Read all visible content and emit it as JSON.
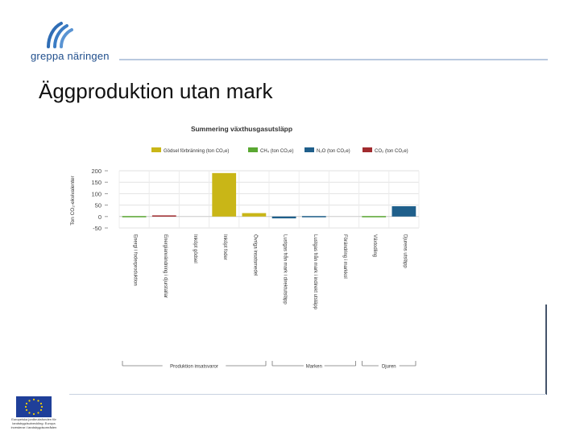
{
  "header": {
    "logo_text": "greppa näringen",
    "title": "Äggproduktion utan mark"
  },
  "footer": {
    "eu_text": "Europeiska jordbruksfonden för landsbygdsutveckling: Europa investerar i landsbygdsområden"
  },
  "colors": {
    "fertilizer": "#c9b617",
    "ch4": "#5aa832",
    "n2o": "#1f5f8b",
    "co2": "#a12b2e"
  },
  "chart_data": {
    "type": "bar",
    "title": "Summering växthusgasutsläpp",
    "ylabel": "Ton CO₂-ekvivalenter",
    "ylim": [
      -50,
      200
    ],
    "yticks": [
      200,
      150,
      100,
      50,
      0,
      -50
    ],
    "legend_position": "top",
    "grid": true,
    "series": [
      {
        "name": "Gödsel förbränning (ton CO₂e)",
        "color_key": "fertilizer"
      },
      {
        "name": "CH₄ (ton CO₂e)",
        "color_key": "ch4"
      },
      {
        "name": "N₂O (ton CO₂e)",
        "color_key": "n2o"
      },
      {
        "name": "CO₂ (ton CO₂e)",
        "color_key": "co2"
      }
    ],
    "categories": [
      "Energi i foderproduktion",
      "Energianvändning i djurstallar",
      "Inköpt gödsel",
      "Inköpt foder",
      "Övriga insatsmedel",
      "Lustgas från mark i direktutsläpp",
      "Lustgas från mark i indirekt utsläpp",
      "Förändring i markkol",
      "Växtodling",
      "Djurens utsläpp"
    ],
    "bars": [
      {
        "category_index": 0,
        "series_index": 1,
        "value": 2
      },
      {
        "category_index": 1,
        "series_index": 3,
        "value": 5
      },
      {
        "category_index": 3,
        "series_index": 0,
        "value": 190
      },
      {
        "category_index": 4,
        "series_index": 0,
        "value": 15
      },
      {
        "category_index": 5,
        "series_index": 2,
        "value": -8
      },
      {
        "category_index": 6,
        "series_index": 2,
        "value": 2
      },
      {
        "category_index": 8,
        "series_index": 1,
        "value": 2
      },
      {
        "category_index": 9,
        "series_index": 2,
        "value": 45
      }
    ],
    "groups": [
      {
        "label": "Produktion insatsvaror",
        "from": 0,
        "to": 4
      },
      {
        "label": "Marken",
        "from": 5,
        "to": 7
      },
      {
        "label": "Djuren",
        "from": 8,
        "to": 9
      }
    ]
  }
}
